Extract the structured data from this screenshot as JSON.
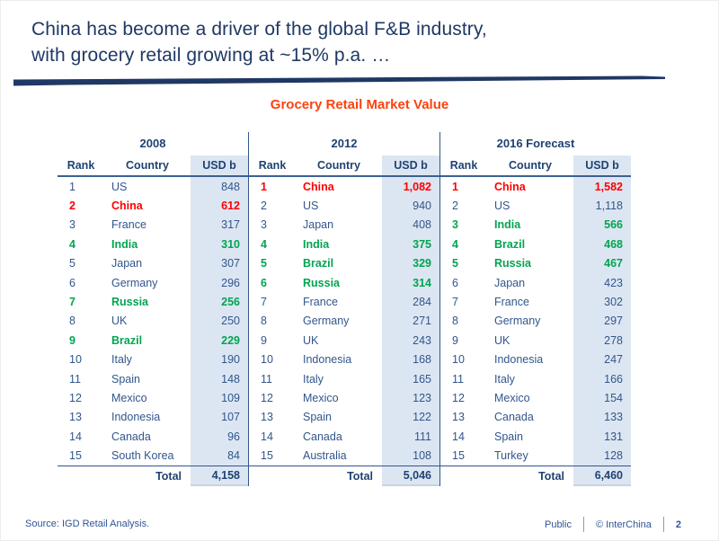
{
  "slide": {
    "title_line1": "China has become a driver of the global F&B industry,",
    "title_line2": "with grocery retail growing at ~15% p.a. …",
    "chart_title": "Grocery Retail Market Value",
    "footer": {
      "source": "Source: IGD Retail Analysis.",
      "classification": "Public",
      "copyright": "© InterChina",
      "page_number": "2"
    }
  },
  "colors": {
    "title_navy": "#1F3864",
    "table_text_navy": "#31568C",
    "header_navy": "#1F4272",
    "highlight_red": "#FF0000",
    "highlight_green": "#00A550",
    "value_column_bg": "#DCE6F2",
    "chart_title_orange": "#FA430F"
  },
  "tables": [
    {
      "year": "2008",
      "headers": [
        "Rank",
        "Country",
        "USD b"
      ],
      "rows": [
        {
          "rank": "1",
          "country": "US",
          "value": "848",
          "style": "normal"
        },
        {
          "rank": "2",
          "country": "China",
          "value": "612",
          "style": "red"
        },
        {
          "rank": "3",
          "country": "France",
          "value": "317",
          "style": "normal"
        },
        {
          "rank": "4",
          "country": "India",
          "value": "310",
          "style": "green"
        },
        {
          "rank": "5",
          "country": "Japan",
          "value": "307",
          "style": "normal"
        },
        {
          "rank": "6",
          "country": "Germany",
          "value": "296",
          "style": "normal"
        },
        {
          "rank": "7",
          "country": "Russia",
          "value": "256",
          "style": "green"
        },
        {
          "rank": "8",
          "country": "UK",
          "value": "250",
          "style": "normal"
        },
        {
          "rank": "9",
          "country": "Brazil",
          "value": "229",
          "style": "green"
        },
        {
          "rank": "10",
          "country": "Italy",
          "value": "190",
          "style": "normal"
        },
        {
          "rank": "11",
          "country": "Spain",
          "value": "148",
          "style": "normal"
        },
        {
          "rank": "12",
          "country": "Mexico",
          "value": "109",
          "style": "normal"
        },
        {
          "rank": "13",
          "country": "Indonesia",
          "value": "107",
          "style": "normal"
        },
        {
          "rank": "14",
          "country": "Canada",
          "value": "96",
          "style": "normal"
        },
        {
          "rank": "15",
          "country": "South Korea",
          "value": "84",
          "style": "normal"
        }
      ],
      "total_label": "Total",
      "total_value": "4,158"
    },
    {
      "year": "2012",
      "headers": [
        "Rank",
        "Country",
        "USD b"
      ],
      "rows": [
        {
          "rank": "1",
          "country": "China",
          "value": "1,082",
          "style": "red"
        },
        {
          "rank": "2",
          "country": "US",
          "value": "940",
          "style": "normal"
        },
        {
          "rank": "3",
          "country": "Japan",
          "value": "408",
          "style": "normal"
        },
        {
          "rank": "4",
          "country": "India",
          "value": "375",
          "style": "green"
        },
        {
          "rank": "5",
          "country": "Brazil",
          "value": "329",
          "style": "green"
        },
        {
          "rank": "6",
          "country": "Russia",
          "value": "314",
          "style": "green"
        },
        {
          "rank": "7",
          "country": "France",
          "value": "284",
          "style": "normal"
        },
        {
          "rank": "8",
          "country": "Germany",
          "value": "271",
          "style": "normal"
        },
        {
          "rank": "9",
          "country": "UK",
          "value": "243",
          "style": "normal"
        },
        {
          "rank": "10",
          "country": "Indonesia",
          "value": "168",
          "style": "normal"
        },
        {
          "rank": "11",
          "country": "Italy",
          "value": "165",
          "style": "normal"
        },
        {
          "rank": "12",
          "country": "Mexico",
          "value": "123",
          "style": "normal"
        },
        {
          "rank": "13",
          "country": "Spain",
          "value": "122",
          "style": "normal"
        },
        {
          "rank": "14",
          "country": "Canada",
          "value": "111",
          "style": "normal"
        },
        {
          "rank": "15",
          "country": "Australia",
          "value": "108",
          "style": "normal"
        }
      ],
      "total_label": "Total",
      "total_value": "5,046"
    },
    {
      "year": "2016 Forecast",
      "headers": [
        "Rank",
        "Country",
        "USD b"
      ],
      "rows": [
        {
          "rank": "1",
          "country": "China",
          "value": "1,582",
          "style": "red"
        },
        {
          "rank": "2",
          "country": "US",
          "value": "1,118",
          "style": "normal"
        },
        {
          "rank": "3",
          "country": "India",
          "value": "566",
          "style": "green"
        },
        {
          "rank": "4",
          "country": "Brazil",
          "value": "468",
          "style": "green"
        },
        {
          "rank": "5",
          "country": "Russia",
          "value": "467",
          "style": "green"
        },
        {
          "rank": "6",
          "country": "Japan",
          "value": "423",
          "style": "normal"
        },
        {
          "rank": "7",
          "country": "France",
          "value": "302",
          "style": "normal"
        },
        {
          "rank": "8",
          "country": "Germany",
          "value": "297",
          "style": "normal"
        },
        {
          "rank": "9",
          "country": "UK",
          "value": "278",
          "style": "normal"
        },
        {
          "rank": "10",
          "country": "Indonesia",
          "value": "247",
          "style": "normal"
        },
        {
          "rank": "11",
          "country": "Italy",
          "value": "166",
          "style": "normal"
        },
        {
          "rank": "12",
          "country": "Mexico",
          "value": "154",
          "style": "normal"
        },
        {
          "rank": "13",
          "country": "Canada",
          "value": "133",
          "style": "normal"
        },
        {
          "rank": "14",
          "country": "Spain",
          "value": "131",
          "style": "normal"
        },
        {
          "rank": "15",
          "country": "Turkey",
          "value": "128",
          "style": "normal"
        }
      ],
      "total_label": "Total",
      "total_value": "6,460"
    }
  ]
}
